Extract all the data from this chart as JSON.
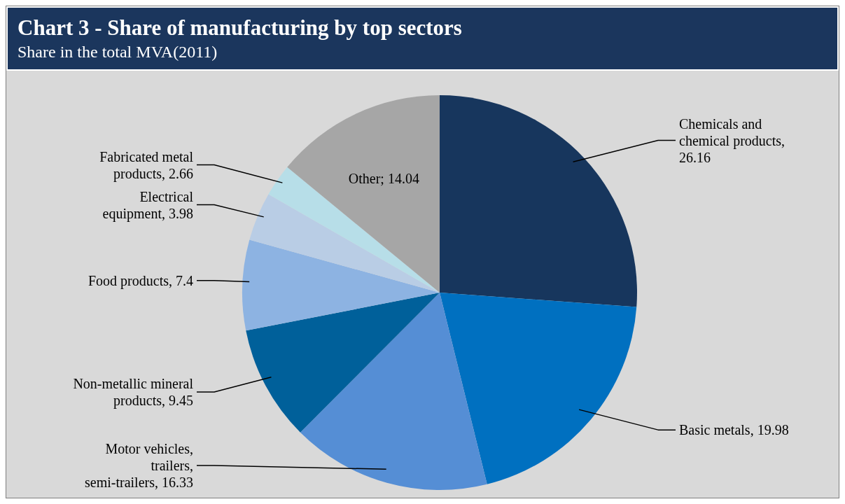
{
  "chart_data": {
    "type": "pie",
    "title": "Chart 3 - Share of manufacturing by top sectors",
    "subtitle": "Share in the total MVA(2011)",
    "categories": [
      "Chemicals and chemical products",
      "Basic metals",
      "Motor vehicles, trailers, semi-trailers",
      "Non-metallic mineral products",
      "Food products",
      "Electrical equipment",
      "Fabricated metal products",
      "Other"
    ],
    "values": [
      26.16,
      19.98,
      16.33,
      9.45,
      7.4,
      3.98,
      2.66,
      14.04
    ],
    "colors": [
      "#17365d",
      "#0070c0",
      "#558ed5",
      "#00609a",
      "#8db3e2",
      "#b9cde5",
      "#b7dee8",
      "#a6a6a6"
    ],
    "value_labels": [
      ", 26.16",
      ", 19.98",
      ", 16.33",
      ", 9.45",
      ", 7.4",
      ", 3.98",
      ", 2.66",
      "; 14.04"
    ],
    "legend": false
  }
}
